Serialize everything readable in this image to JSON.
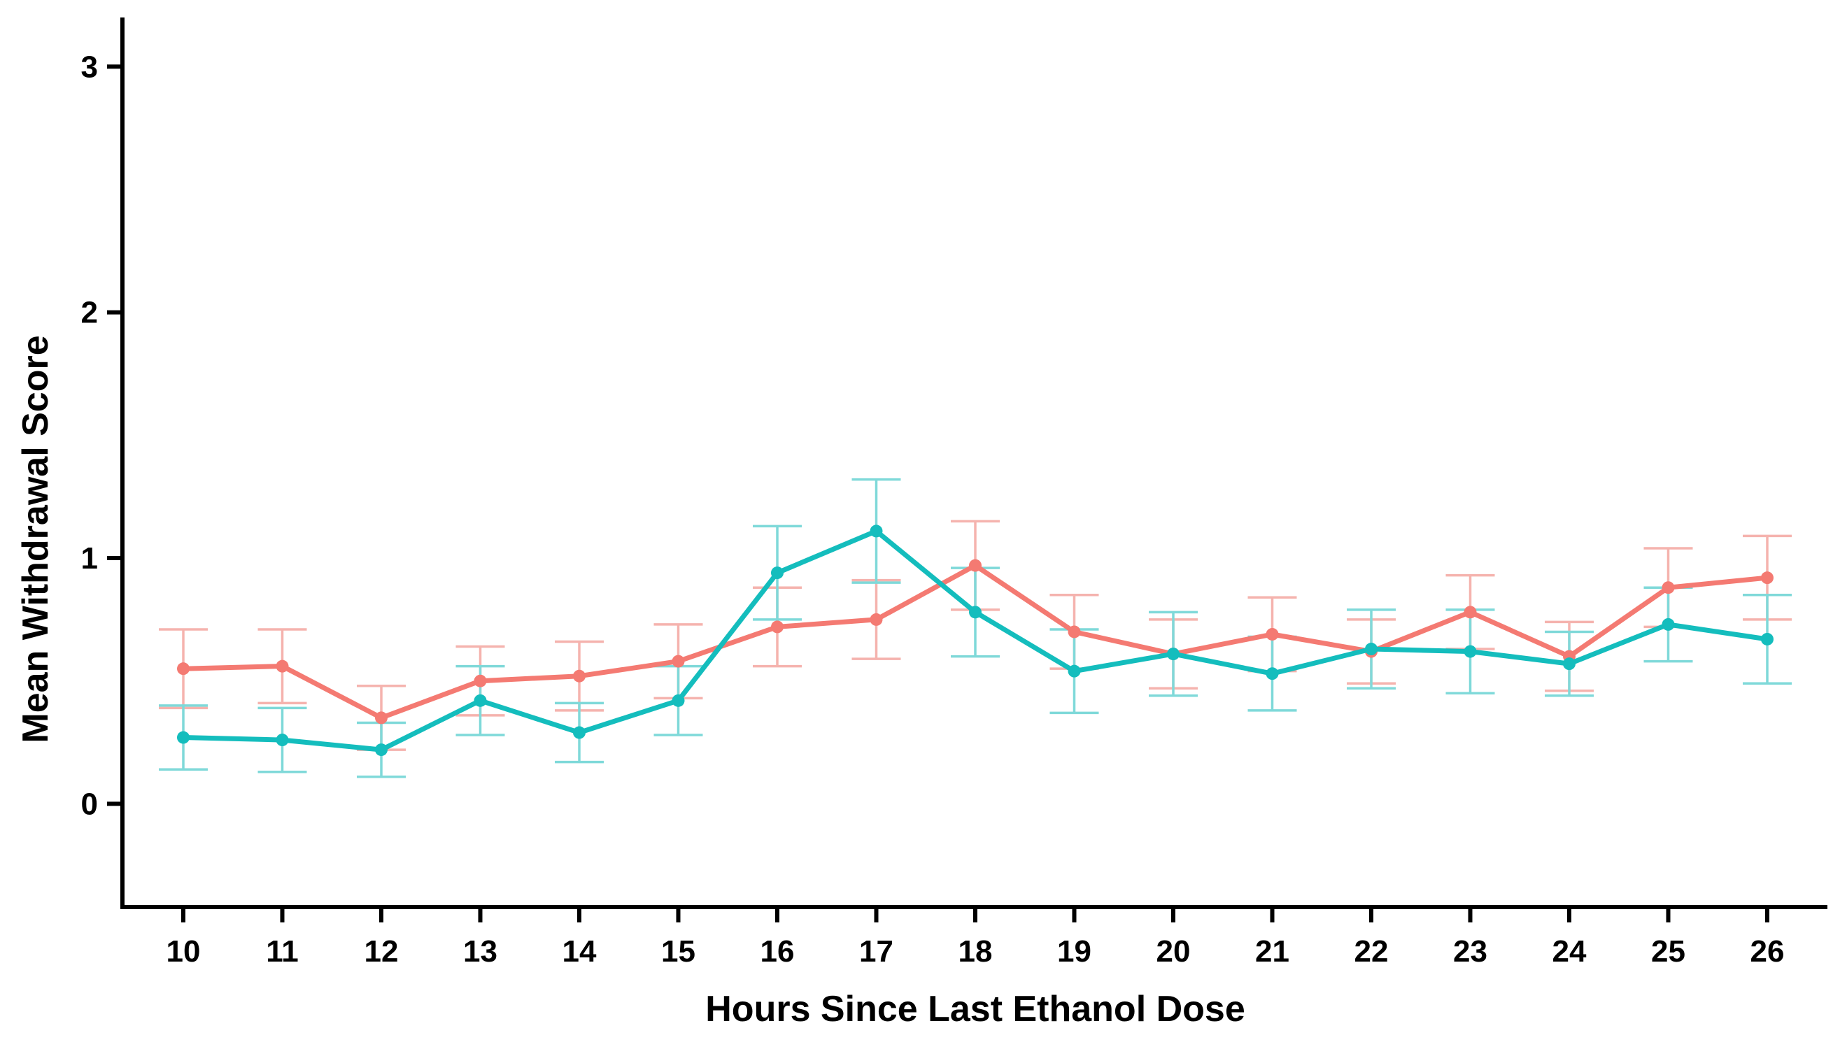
{
  "chart_data": {
    "type": "line",
    "xlabel": "Hours Since Last Ethanol Dose",
    "ylabel": "Mean Withdrawal Score",
    "x": [
      10,
      11,
      12,
      13,
      14,
      15,
      16,
      17,
      18,
      19,
      20,
      21,
      22,
      23,
      24,
      25,
      26
    ],
    "x_tick_labels": [
      "10",
      "11",
      "12",
      "13",
      "14",
      "15",
      "16",
      "17",
      "18",
      "19",
      "20",
      "21",
      "22",
      "23",
      "24",
      "25",
      "26"
    ],
    "ylim": [
      -0.42,
      3.2
    ],
    "y_ticks": [
      0,
      1,
      2,
      3
    ],
    "y_tick_labels": [
      "0",
      "1",
      "2",
      "3"
    ],
    "grid": false,
    "legend": "none",
    "error_bars": true,
    "series": [
      {
        "color": "#F47A72",
        "error_color": "#F5B3AE",
        "values": [
          0.55,
          0.56,
          0.35,
          0.5,
          0.52,
          0.58,
          0.72,
          0.75,
          0.97,
          0.7,
          0.61,
          0.69,
          0.62,
          0.78,
          0.6,
          0.88,
          0.92
        ],
        "errors": [
          0.16,
          0.15,
          0.13,
          0.14,
          0.14,
          0.15,
          0.16,
          0.16,
          0.18,
          0.15,
          0.14,
          0.15,
          0.13,
          0.15,
          0.14,
          0.16,
          0.17
        ]
      },
      {
        "color": "#14BDBD",
        "error_color": "#7FD9D9",
        "values": [
          0.27,
          0.26,
          0.22,
          0.42,
          0.29,
          0.42,
          0.94,
          1.11,
          0.78,
          0.54,
          0.61,
          0.53,
          0.63,
          0.62,
          0.57,
          0.73,
          0.67
        ],
        "errors": [
          0.13,
          0.13,
          0.11,
          0.14,
          0.12,
          0.14,
          0.19,
          0.21,
          0.18,
          0.17,
          0.17,
          0.15,
          0.16,
          0.17,
          0.13,
          0.15,
          0.18
        ]
      }
    ]
  }
}
